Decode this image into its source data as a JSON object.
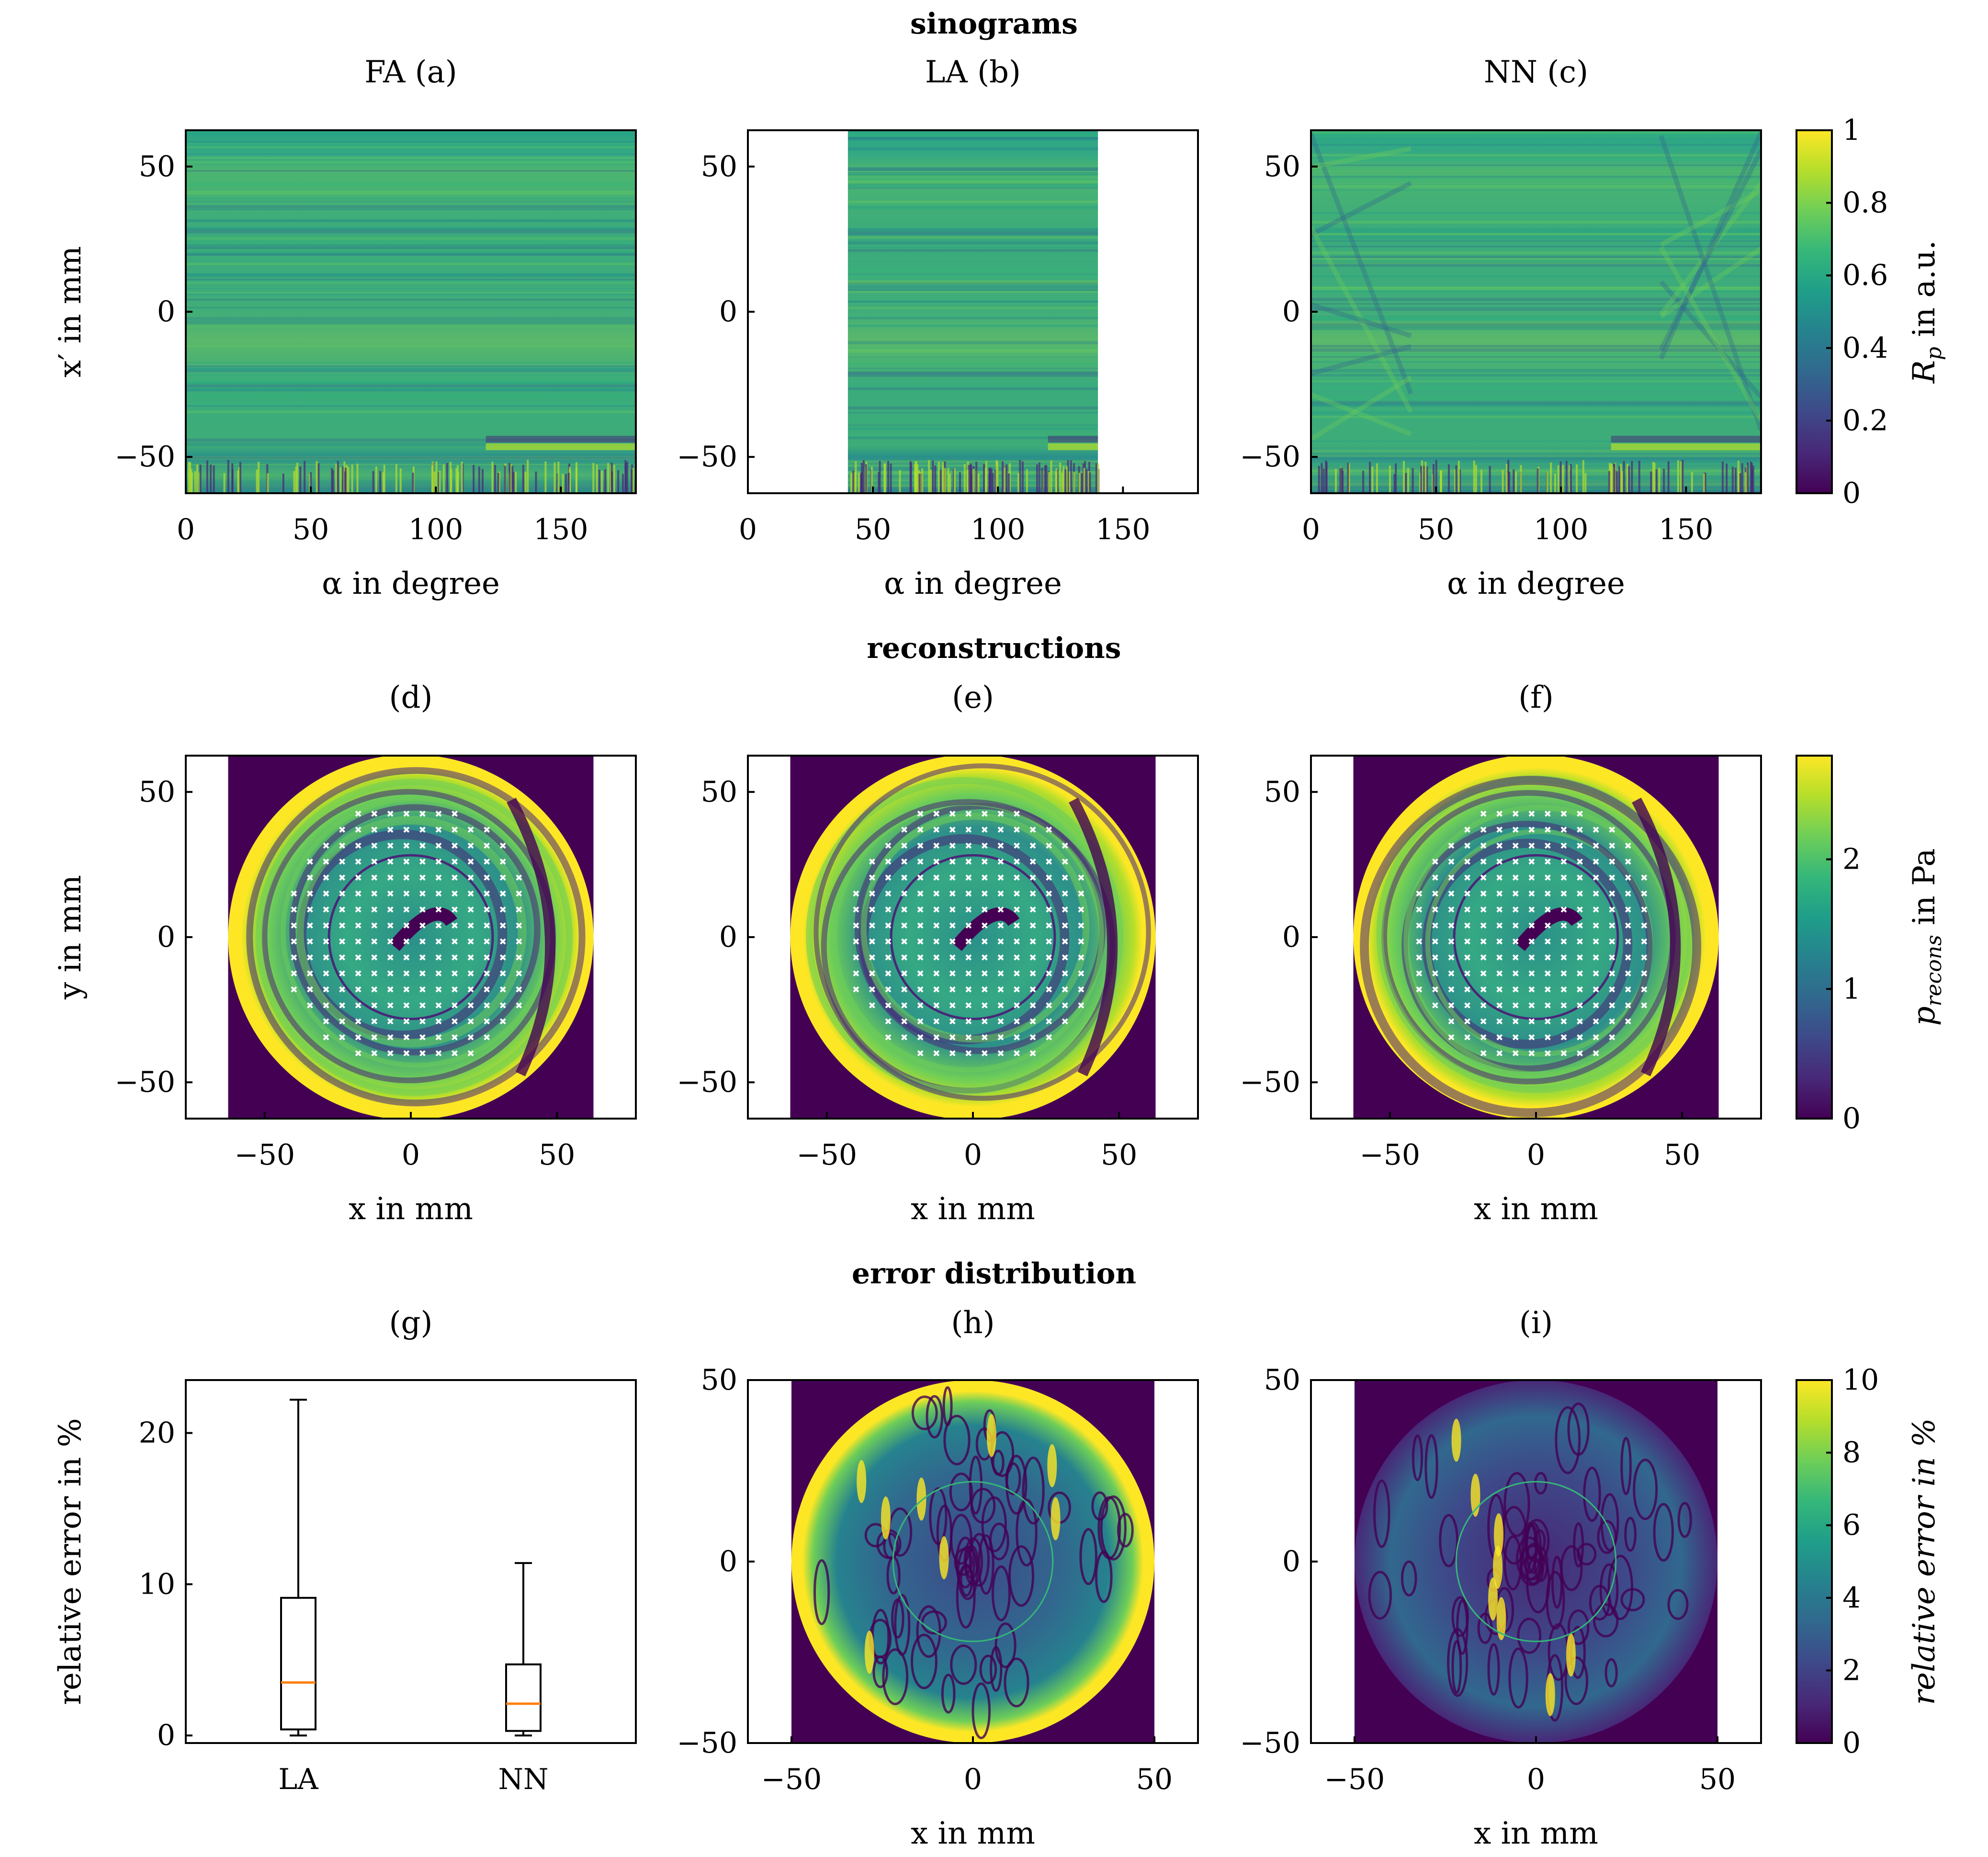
{
  "figure": {
    "section_titles": [
      "sinograms",
      "reconstructions",
      "error distribution"
    ]
  },
  "colors": {
    "viridis": [
      "#440154",
      "#482878",
      "#3e4989",
      "#31688e",
      "#26828e",
      "#1f9e89",
      "#35b779",
      "#6ece58",
      "#b5de2b",
      "#fde725"
    ],
    "median": "#ff7f0e",
    "frame": "#000000"
  },
  "chart_data": [
    {
      "type": "heatmap",
      "id": "a",
      "title": "FA (a)",
      "section": "sinograms",
      "xlabel": "α in degree",
      "ylabel": "x′ in mm",
      "xlim": [
        0,
        180
      ],
      "ylim": [
        -62.5,
        62.5
      ],
      "xticks": [
        0,
        50,
        100,
        150
      ],
      "yticks": [
        -50,
        0,
        50
      ],
      "xticklabels": [
        "0",
        "50",
        "100",
        "150"
      ],
      "yticklabels": [
        "−50",
        "0",
        "50"
      ],
      "data_x_range": [
        0,
        180
      ]
    },
    {
      "type": "heatmap",
      "id": "b",
      "title": "LA (b)",
      "section": "sinograms",
      "xlabel": "α in degree",
      "ylabel": "",
      "xlim": [
        0,
        180
      ],
      "ylim": [
        -62.5,
        62.5
      ],
      "xticks": [
        0,
        50,
        100,
        150
      ],
      "yticks": [
        -50,
        0,
        50
      ],
      "xticklabels": [
        "0",
        "50",
        "100",
        "150"
      ],
      "yticklabels": [
        "−50",
        "0",
        "50"
      ],
      "data_x_range": [
        40,
        140
      ]
    },
    {
      "type": "heatmap",
      "id": "c",
      "title": "NN (c)",
      "section": "sinograms",
      "xlabel": "α in degree",
      "ylabel": "",
      "xlim": [
        0,
        180
      ],
      "ylim": [
        -62.5,
        62.5
      ],
      "xticks": [
        0,
        50,
        100,
        150
      ],
      "yticks": [
        -50,
        0,
        50
      ],
      "xticklabels": [
        "0",
        "50",
        "100",
        "150"
      ],
      "yticklabels": [
        "−50",
        "0",
        "50"
      ],
      "data_x_range": [
        0,
        180
      ],
      "colorbar": {
        "label": "R_p in a.u.",
        "label_main": "R",
        "label_sub": "p",
        "label_rest": " in a.u.",
        "range": [
          0,
          1
        ],
        "ticks": [
          0,
          0.2,
          0.4,
          0.6,
          0.8,
          1
        ],
        "ticklabels": [
          "0",
          "0.2",
          "0.4",
          "0.6",
          "0.8",
          "1"
        ]
      }
    },
    {
      "type": "heatmap",
      "id": "d",
      "title": "(d)",
      "section": "reconstructions",
      "xlabel": "x in mm",
      "ylabel": "y in mm",
      "xlim": [
        -77,
        77
      ],
      "ylim": [
        -62.5,
        62.5
      ],
      "xticks": [
        -50,
        0,
        50
      ],
      "yticks": [
        -50,
        0,
        50
      ],
      "xticklabels": [
        "−50",
        "0",
        "50"
      ],
      "yticklabels": [
        "−50",
        "0",
        "50"
      ],
      "image_x_range": [
        -62.5,
        62.5
      ],
      "disk_radius_mm": 62.5,
      "inner_ring_radius_mm": 28,
      "sensor_markers": true
    },
    {
      "type": "heatmap",
      "id": "e",
      "title": "(e)",
      "section": "reconstructions",
      "xlabel": "x in mm",
      "ylabel": "",
      "xlim": [
        -77,
        77
      ],
      "ylim": [
        -62.5,
        62.5
      ],
      "xticks": [
        -50,
        0,
        50
      ],
      "yticks": [
        -50,
        0,
        50
      ],
      "xticklabels": [
        "−50",
        "0",
        "50"
      ],
      "yticklabels": [
        "−50",
        "0",
        "50"
      ],
      "image_x_range": [
        -62.5,
        62.5
      ],
      "disk_radius_mm": 62.5,
      "inner_ring_radius_mm": 28,
      "sensor_markers": true
    },
    {
      "type": "heatmap",
      "id": "f",
      "title": "(f)",
      "section": "reconstructions",
      "xlabel": "x in mm",
      "ylabel": "",
      "xlim": [
        -77,
        77
      ],
      "ylim": [
        -62.5,
        62.5
      ],
      "xticks": [
        -50,
        0,
        50
      ],
      "yticks": [
        -50,
        0,
        50
      ],
      "xticklabels": [
        "−50",
        "0",
        "50"
      ],
      "yticklabels": [
        "−50",
        "0",
        "50"
      ],
      "image_x_range": [
        -62.5,
        62.5
      ],
      "disk_radius_mm": 62.5,
      "inner_ring_radius_mm": 28,
      "sensor_markers": true,
      "colorbar": {
        "label": "p_recons in Pa",
        "label_main": "p",
        "label_sub": "recons",
        "label_rest": " in Pa",
        "range": [
          0,
          2.8
        ],
        "ticks": [
          0,
          1,
          2
        ],
        "ticklabels": [
          "0",
          "1",
          "2"
        ]
      }
    },
    {
      "type": "box",
      "id": "g",
      "title": "(g)",
      "section": "error distribution",
      "xlabel": "",
      "ylabel": "relative error in %",
      "ylim": [
        -0.5,
        23.5
      ],
      "yticks": [
        0,
        10,
        20
      ],
      "yticklabels": [
        "0",
        "10",
        "20"
      ],
      "categories": [
        "LA",
        "NN"
      ],
      "boxes": [
        {
          "name": "LA",
          "whisker_low": 0,
          "q1": 0.4,
          "median": 3.5,
          "q3": 9.1,
          "whisker_high": 22.2
        },
        {
          "name": "NN",
          "whisker_low": 0,
          "q1": 0.3,
          "median": 2.1,
          "q3": 4.7,
          "whisker_high": 11.4
        }
      ]
    },
    {
      "type": "heatmap",
      "id": "h",
      "title": "(h)",
      "section": "error distribution",
      "xlabel": "x in mm",
      "ylabel": "",
      "xlim": [
        -62,
        62
      ],
      "ylim": [
        -50,
        50
      ],
      "xticks": [
        -50,
        0,
        50
      ],
      "yticks": [
        -50,
        0,
        50
      ],
      "xticklabels": [
        "−50",
        "0",
        "50"
      ],
      "yticklabels": [
        "−50",
        "0",
        "50"
      ],
      "image_x_range": [
        -50,
        50
      ],
      "disk_radius_mm": 50,
      "inner_ring_radius_mm": 22
    },
    {
      "type": "heatmap",
      "id": "i",
      "title": "(i)",
      "section": "error distribution",
      "xlabel": "x in mm",
      "ylabel": "",
      "xlim": [
        -62,
        62
      ],
      "ylim": [
        -50,
        50
      ],
      "xticks": [
        -50,
        0,
        50
      ],
      "yticks": [
        -50,
        0,
        50
      ],
      "xticklabels": [
        "−50",
        "0",
        "50"
      ],
      "yticklabels": [
        "−50",
        "0",
        "50"
      ],
      "image_x_range": [
        -50,
        50
      ],
      "disk_radius_mm": 50,
      "inner_ring_radius_mm": 22,
      "colorbar": {
        "label": "relative error in %",
        "label_main": "relative error in %",
        "label_sub": "",
        "label_rest": "",
        "range": [
          0,
          10
        ],
        "ticks": [
          0,
          2,
          4,
          6,
          8,
          10
        ],
        "ticklabels": [
          "0",
          "2",
          "4",
          "6",
          "8",
          "10"
        ]
      }
    }
  ]
}
